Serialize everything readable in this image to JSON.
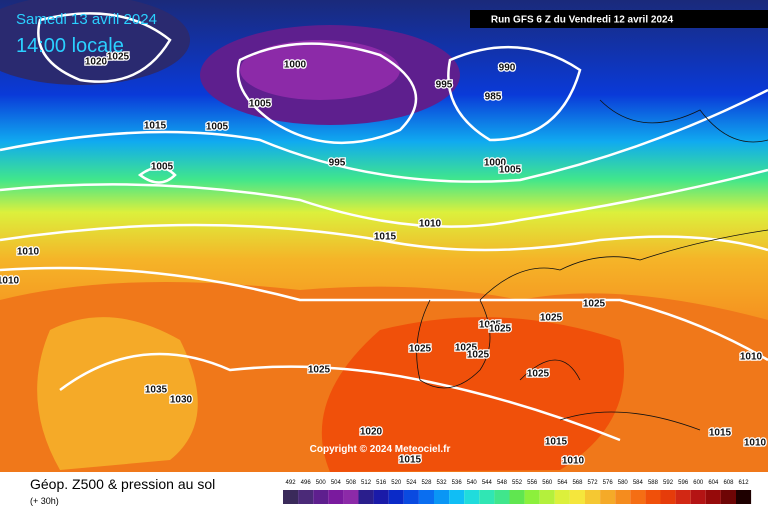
{
  "header": {
    "date": "Samedi 13 avril 2024",
    "time": "14:00 locale",
    "run": "Run GFS 6 Z du Vendredi 12 avril 2024"
  },
  "copyright": "Copyright © 2024 Meteociel.fr",
  "footer": {
    "title": "Géop. Z500 & pression au sol",
    "lead": "(+ 30h)"
  },
  "isobar_labels": [
    "1020",
    "1025",
    "1000",
    "995",
    "990",
    "985",
    "1005",
    "1015",
    "1005",
    "1005",
    "995",
    "1000",
    "1005",
    "1010",
    "1015",
    "1010",
    "1010",
    "1025",
    "1025",
    "1025",
    "1025",
    "1025",
    "1025",
    "1025",
    "1025",
    "1025",
    "1035",
    "1030",
    "1020",
    "1015",
    "1015",
    "1010",
    "1015",
    "1010",
    "1010"
  ],
  "legend": {
    "values": [
      "492",
      "496",
      "500",
      "504",
      "508",
      "512",
      "516",
      "520",
      "524",
      "528",
      "532",
      "536",
      "540",
      "544",
      "548",
      "552",
      "556",
      "560",
      "564",
      "568",
      "572",
      "576",
      "580",
      "584",
      "588",
      "592",
      "596",
      "600",
      "604",
      "608",
      "612"
    ],
    "colors": [
      "#3a2a5a",
      "#4b2a78",
      "#5e1f8e",
      "#7a1a9e",
      "#8c2aa8",
      "#2a1e8c",
      "#1a1aa8",
      "#0a2ac8",
      "#0a4ae0",
      "#0a6ef0",
      "#0a96f5",
      "#10bef5",
      "#20dcdc",
      "#30e6b4",
      "#40e68c",
      "#60e650",
      "#8cf03c",
      "#b4f03c",
      "#dcf03c",
      "#f5e63c",
      "#f5c832",
      "#f5aa28",
      "#f58c1e",
      "#f56e14",
      "#f0500a",
      "#e63c0a",
      "#d22814",
      "#b41414",
      "#960a0a",
      "#6e0505",
      "#1e0000"
    ]
  }
}
